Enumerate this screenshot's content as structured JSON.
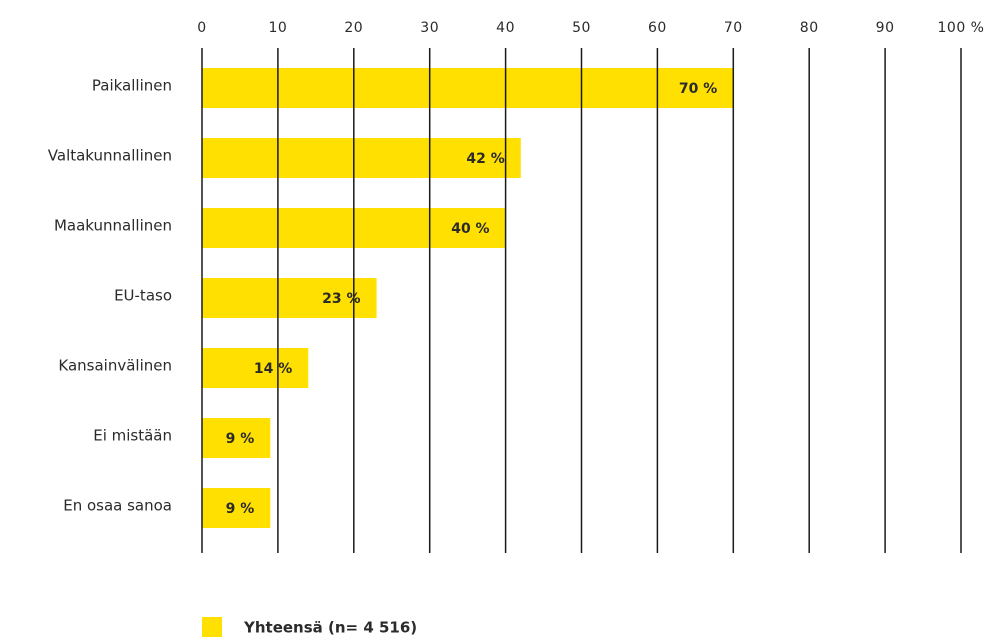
{
  "chart_data": {
    "type": "bar",
    "orientation": "horizontal",
    "categories": [
      "Paikallinen",
      "Valtakunnallinen",
      "Maakunnallinen",
      "EU-taso",
      "Kansainvälinen",
      "Ei mistään",
      "En osaa sanoa"
    ],
    "series": [
      {
        "name": "Yhteensä (n= 4 516)",
        "values": [
          70,
          42,
          40,
          23,
          14,
          9,
          9
        ],
        "data_labels": [
          "70 %",
          "42 %",
          "40 %",
          "23 %",
          "14 %",
          "9 %",
          "9 %"
        ],
        "color": "#FFE000"
      }
    ],
    "x_ticks": [
      "0",
      "10",
      "20",
      "30",
      "40",
      "50",
      "60",
      "70",
      "80",
      "90",
      "100 %"
    ],
    "xlim": [
      0,
      100
    ],
    "axis_position": "top",
    "grid": true,
    "grid_color": "#1a1a1a",
    "legend_position": "bottom-left"
  }
}
